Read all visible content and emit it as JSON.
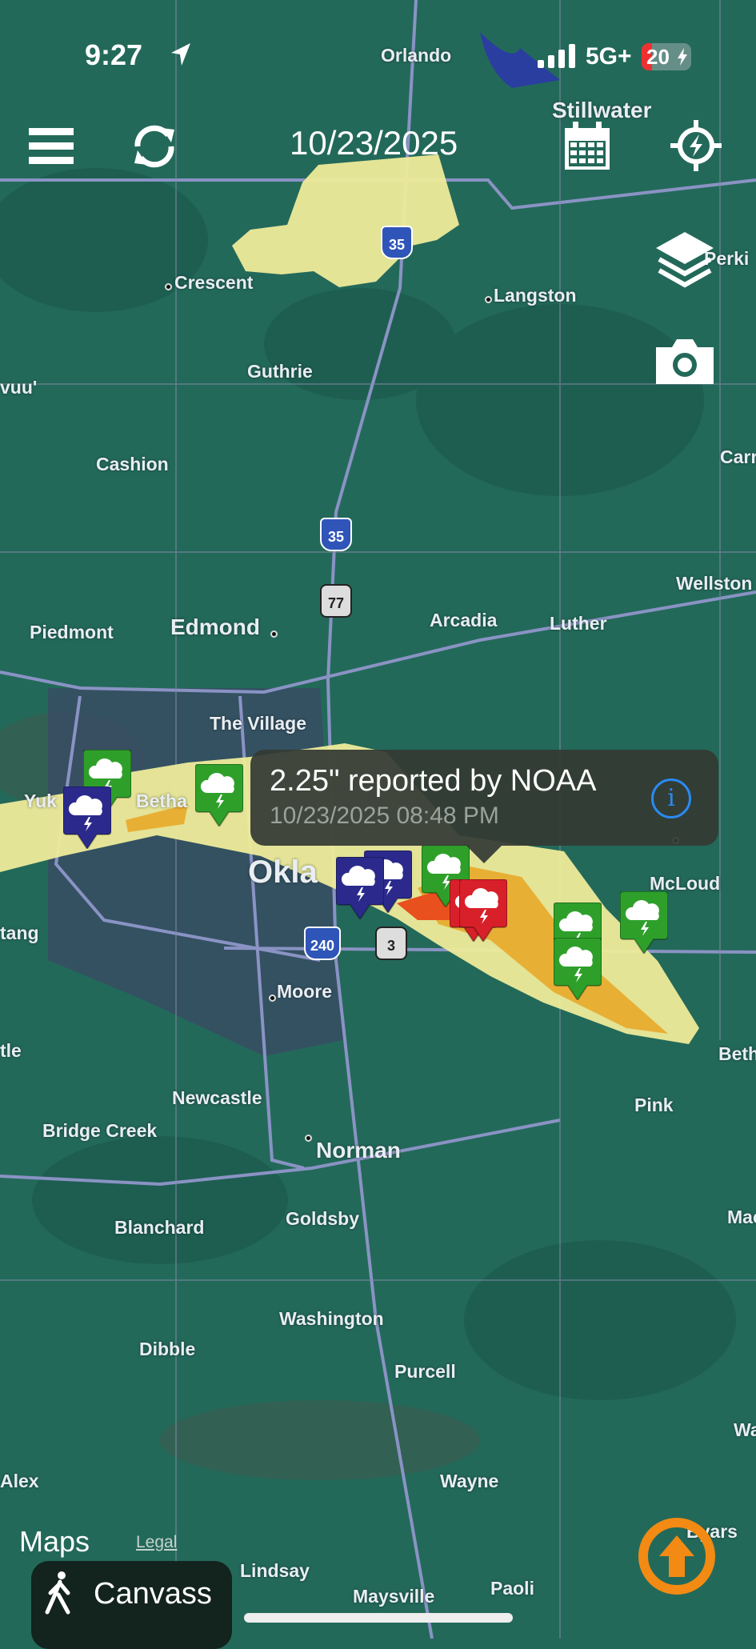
{
  "status_bar": {
    "time": "9:27",
    "network": "5G+",
    "battery": "20"
  },
  "toolbar": {
    "date": "10/23/2025"
  },
  "icons": [
    "menu-icon",
    "refresh-icon",
    "calendar-icon",
    "lightning-compass-icon",
    "layers-icon",
    "camera-icon",
    "location-arrow-icon",
    "info-icon",
    "walking-icon",
    "storm-cloud-icon"
  ],
  "colors": {
    "report_green": "#2ea02a",
    "report_purple": "#2b2a8c",
    "report_red": "#d8202a",
    "swath_yellow": "#eeeb9a",
    "swath_orange": "#e8a82a",
    "swath_red": "#e8501e",
    "accent_orange": "#f28a13",
    "info_blue": "#2a8af0"
  },
  "map": {
    "places": [
      "Orlando",
      "Stillwater",
      "Crescent",
      "Langston",
      "Guthrie",
      "Cashion",
      "Edmond",
      "Piedmont",
      "Arcadia",
      "Luther",
      "Wellston",
      "The Village",
      "Okla",
      "McLoud",
      "Moore",
      "Newcastle",
      "Bridge Creek",
      "Norman",
      "Pink",
      "Blanchard",
      "Goldsby",
      "Washington",
      "Dibble",
      "Purcell",
      "Wayne",
      "Alex",
      "Lindsay",
      "Maysville",
      "Paoli",
      "Byars",
      "Perki",
      "Carr",
      "Beth",
      "Mac",
      "Wane",
      "tle",
      "tang",
      "vuu'",
      "Yuk",
      "Betha"
    ],
    "shields": [
      "35",
      "35",
      "77",
      "240",
      "3"
    ]
  },
  "popup": {
    "title": "2.25\" reported by NOAA",
    "subtitle": "10/23/2025 08:48 PM"
  },
  "footer": {
    "maps": "Maps",
    "legal": "Legal",
    "canvass": "Canvass"
  }
}
